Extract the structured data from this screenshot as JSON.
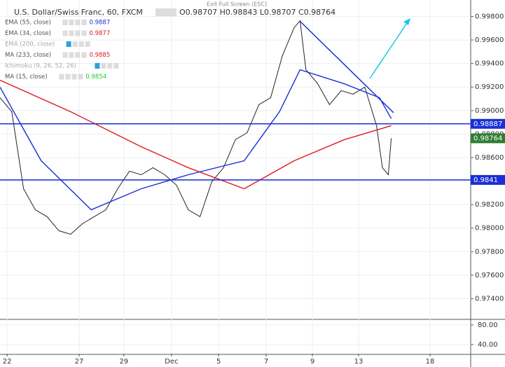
{
  "chart_data": {
    "type": "line",
    "title": "U.S. Dollar/Swiss Franc, 60, FXCM",
    "ohlc_label": "O0.98707 H0.98843 L0.98707 C0.98764",
    "top_label": "Exit Full Screen (ESC)",
    "xlim": [
      0,
      160
    ],
    "xticks": [
      {
        "value": 2.4,
        "label": "22"
      },
      {
        "value": 26.9,
        "label": "27"
      },
      {
        "value": 42.1,
        "label": "29"
      },
      {
        "value": 58.3,
        "label": "Dec"
      },
      {
        "value": 74.3,
        "label": "5"
      },
      {
        "value": 90.5,
        "label": "7"
      },
      {
        "value": 106.2,
        "label": "9"
      },
      {
        "value": 121.9,
        "label": "13"
      },
      {
        "value": 146.2,
        "label": "18"
      }
    ],
    "ylim": [
      0.9723,
      0.9994
    ],
    "yticks": [
      {
        "value": 0.998,
        "label": "0.99800"
      },
      {
        "value": 0.996,
        "label": "0.99600"
      },
      {
        "value": 0.994,
        "label": "0.99400"
      },
      {
        "value": 0.992,
        "label": "0.99200"
      },
      {
        "value": 0.99,
        "label": "0.99000"
      },
      {
        "value": 0.988,
        "label": "0.98800"
      },
      {
        "value": 0.986,
        "label": "0.98600"
      },
      {
        "value": 0.984,
        "label": "0.98400"
      },
      {
        "value": 0.982,
        "label": "0.98200"
      },
      {
        "value": 0.98,
        "label": "0.98000"
      },
      {
        "value": 0.978,
        "label": "0.97800"
      },
      {
        "value": 0.976,
        "label": "0.97600"
      },
      {
        "value": 0.974,
        "label": "0.97400"
      }
    ],
    "y2lim": [
      21.4,
      88.6
    ],
    "y2ticks": [
      {
        "value": 80,
        "label": "80.00"
      },
      {
        "value": 40,
        "label": "40.00"
      }
    ],
    "grid": true,
    "hlines": [
      {
        "value": 0.98887,
        "color": "#1a2fd6"
      },
      {
        "value": 0.9841,
        "color": "#1a2fd6"
      }
    ],
    "last_price": {
      "value": 0.98764,
      "color": "#2e7d32"
    },
    "indicators": [
      {
        "name": "EMA (55, close)",
        "value": 0.9887,
        "color": "#1a2fd6"
      },
      {
        "name": "EMA (34, close)",
        "value": 0.9877,
        "color": "#e0191f"
      },
      {
        "name": "EMA (200, close)",
        "color": "#aaaaaa"
      },
      {
        "name": "MA (233, close)",
        "value": 0.9885,
        "color": "#e0191f"
      },
      {
        "name": "Ichimoku (9, 26, 52, 26)",
        "color": "#aaaaaa"
      },
      {
        "name": "MA (15, close)",
        "value": 0.9854,
        "color": "#22cc22"
      }
    ],
    "series": [
      {
        "name": "Close",
        "color": "#222222",
        "x": [
          0,
          4,
          8,
          12,
          16,
          20,
          24,
          28,
          32,
          36,
          40,
          44,
          48,
          52,
          56,
          60,
          64,
          68,
          72,
          76,
          80,
          84,
          88,
          92,
          96,
          100,
          102,
          104,
          108,
          112,
          116,
          120,
          124,
          128,
          130,
          132,
          133
        ],
        "values": [
          0.99109,
          0.9899,
          0.98335,
          0.98156,
          0.98097,
          0.97978,
          0.97948,
          0.98037,
          0.98097,
          0.98156,
          0.98335,
          0.98484,
          0.98454,
          0.98514,
          0.98454,
          0.98365,
          0.98156,
          0.98097,
          0.98395,
          0.98514,
          0.98752,
          0.98811,
          0.9905,
          0.99109,
          0.99467,
          0.99705,
          0.99764,
          0.99347,
          0.99228,
          0.9905,
          0.99169,
          0.99139,
          0.99199,
          0.98871,
          0.98514,
          0.98454,
          0.98764
        ]
      },
      {
        "name": "MA (233, close)",
        "color": "#e0191f",
        "x": [
          0,
          24,
          48,
          64,
          83,
          100,
          117,
          133
        ],
        "values": [
          0.99258,
          0.9899,
          0.98692,
          0.98514,
          0.98335,
          0.98573,
          0.98752,
          0.98871
        ]
      },
      {
        "name": "EMA (55, close)",
        "color": "#1a2fd6",
        "x": [
          0,
          14,
          31,
          48,
          64,
          83,
          95,
          102,
          117,
          129,
          133
        ],
        "values": [
          0.99199,
          0.98573,
          0.98156,
          0.98335,
          0.98454,
          0.98573,
          0.9899,
          0.99347,
          0.99228,
          0.99109,
          0.98931
        ]
      }
    ]
  }
}
